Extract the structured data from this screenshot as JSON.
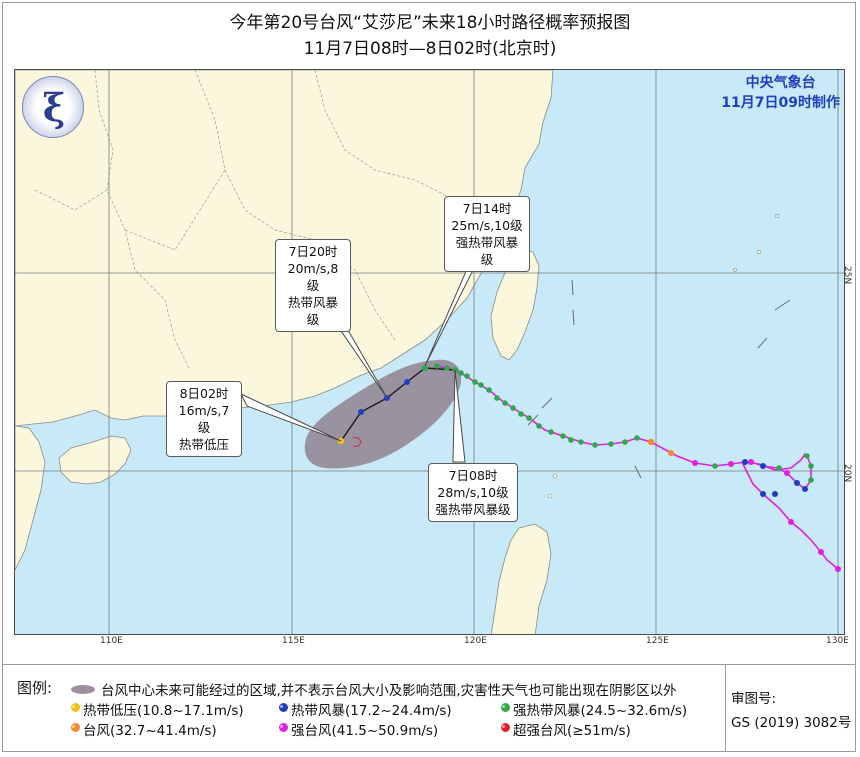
{
  "title": "今年第20号台风“艾莎尼”未来18小时路径概率预报图",
  "subtitle": "11月7日08时—8日02时(北京时)",
  "agency": {
    "name": "中央气象台",
    "made": "11月7日09时制作"
  },
  "map_labels": {
    "lon": [
      "110E",
      "115E",
      "120E",
      "125E",
      "130E"
    ],
    "lat": [
      "25N",
      "20N"
    ]
  },
  "callouts": [
    {
      "time": "7日14时",
      "wind": "25m/s,10级",
      "grade": "强热带风暴级"
    },
    {
      "time": "7日20时",
      "wind": "20m/s,8级",
      "grade": "热带风暴级"
    },
    {
      "time": "8日02时",
      "wind": "16m/s,7级",
      "grade": "热带低压"
    },
    {
      "time": "7日08时",
      "wind": "28m/s,10级",
      "grade": "强热带风暴级"
    }
  ],
  "legend": {
    "title": "图例:",
    "shade_note": "台风中心未来可能经过的区域,并不表示台风大小及影响范围,灾害性天气也可能出现在阴影区以外",
    "items": [
      {
        "label": "热带低压(10.8~17.1m/s)",
        "color": "#f2c014"
      },
      {
        "label": "热带风暴(17.2~24.4m/s)",
        "color": "#1f3fbf"
      },
      {
        "label": "强热带风暴(24.5~32.6m/s)",
        "color": "#2fa84a"
      },
      {
        "label": "台风(32.7~41.4m/s)",
        "color": "#f08a2c"
      },
      {
        "label": "强台风(41.5~50.9m/s)",
        "color": "#e020e0"
      },
      {
        "label": "超强台风(≥51m/s)",
        "color": "#e0202a"
      }
    ]
  },
  "review": {
    "label": "审图号:",
    "number": "GS (2019) 3082号"
  },
  "colors": {
    "sea": "#c8e9f7",
    "land": "#fbf7dc",
    "track": "#e020e0",
    "forecast_track": "#1a1a1a",
    "shade": "#8f7f8e"
  }
}
